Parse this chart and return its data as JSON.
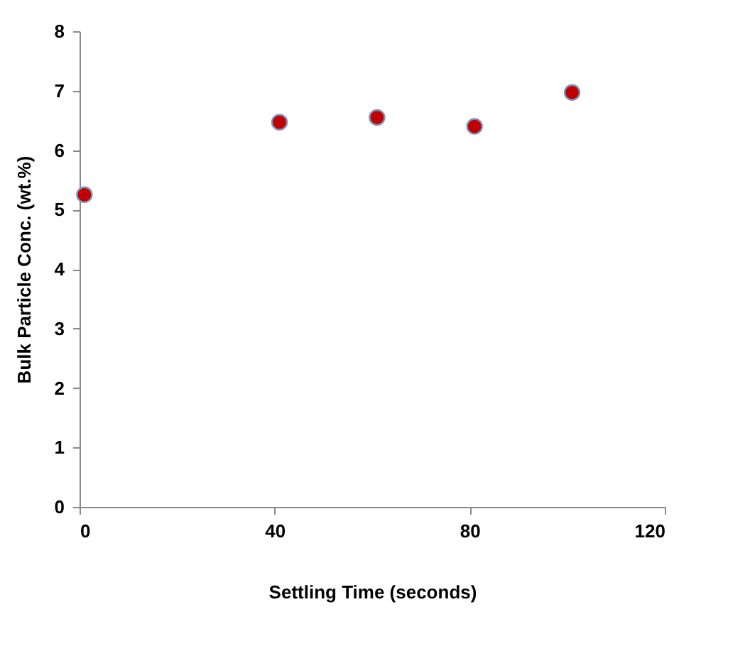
{
  "chart_data": {
    "type": "scatter",
    "xlabel": "Settling Time (seconds)",
    "ylabel": "Bulk Particle Conc. (wt.%)",
    "x": [
      1,
      41,
      61,
      81,
      101
    ],
    "series": [
      {
        "color": "#c00000",
        "values": [
          5.25,
          6.47,
          6.55,
          6.4,
          6.97
        ]
      }
    ],
    "xlim": [
      0,
      120
    ],
    "xticks": [
      0,
      40,
      80,
      120
    ],
    "ylim": [
      0,
      8
    ],
    "yticks": [
      0,
      1,
      2,
      3,
      4,
      5,
      6,
      7,
      8
    ],
    "grid": false,
    "marker": "circle"
  }
}
